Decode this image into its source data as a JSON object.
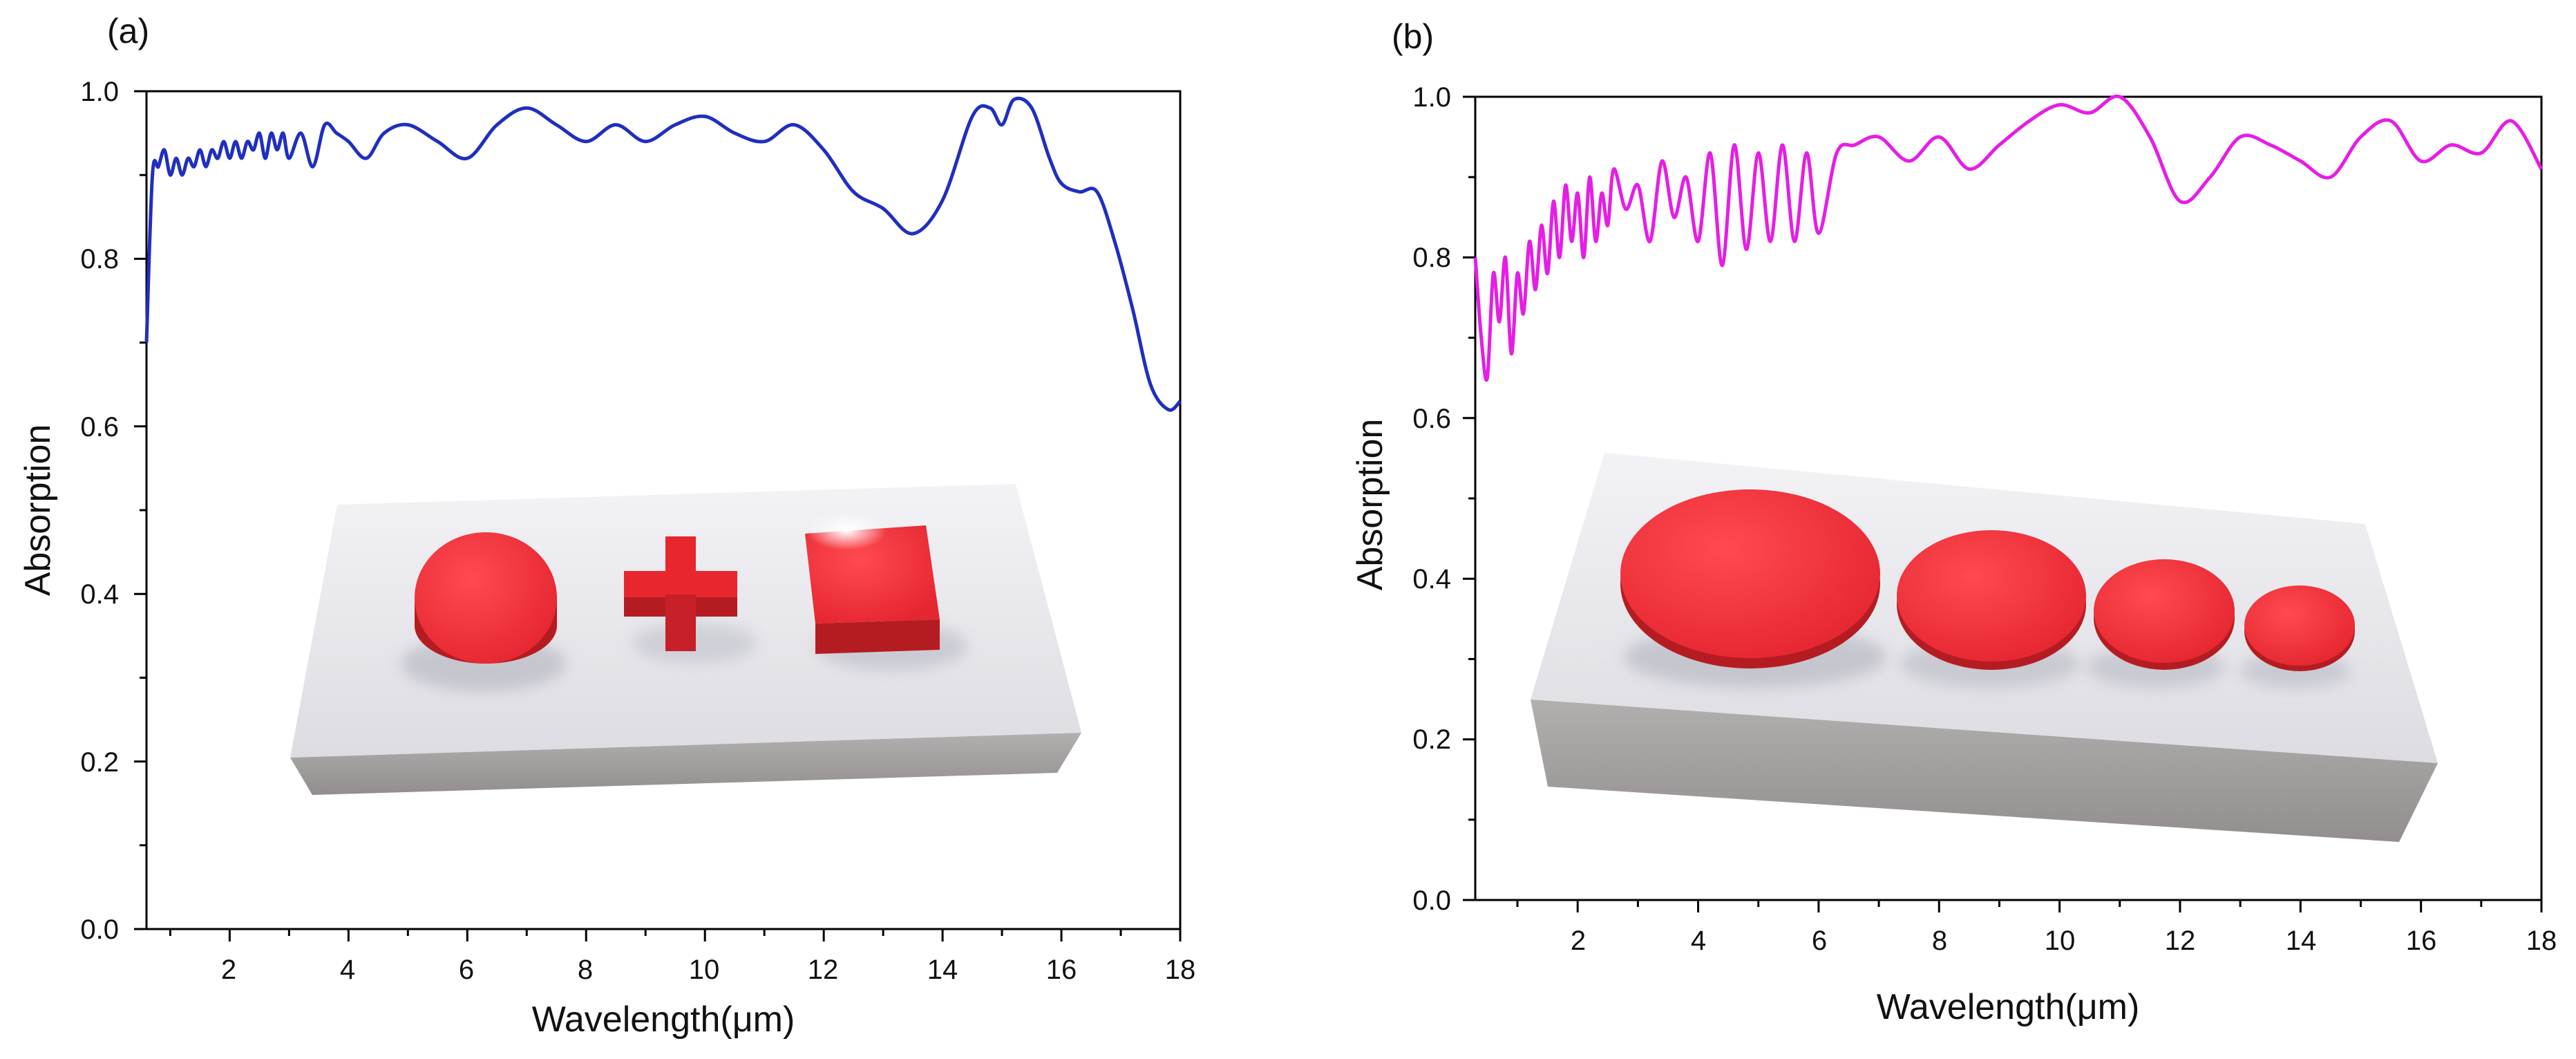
{
  "chart_data": [
    {
      "type": "line",
      "panel_label": "(a)",
      "xlabel": "Wavelength(μm)",
      "ylabel": "Absorption",
      "xlim": [
        0.6,
        18
      ],
      "ylim": [
        0.0,
        1.0
      ],
      "xticks": [
        "2",
        "4",
        "6",
        "8",
        "10",
        "12",
        "14",
        "16",
        "18"
      ],
      "yticks": [
        "0.0",
        "0.2",
        "0.4",
        "0.6",
        "0.8",
        "1.0"
      ],
      "series": [
        {
          "name": "(a)",
          "color": "#1f2fbf",
          "x": [
            0.6,
            0.7,
            0.8,
            0.9,
            1.0,
            1.1,
            1.2,
            1.3,
            1.4,
            1.5,
            1.6,
            1.7,
            1.8,
            1.9,
            2.0,
            2.1,
            2.2,
            2.3,
            2.4,
            2.5,
            2.6,
            2.7,
            2.8,
            2.9,
            3.0,
            3.2,
            3.4,
            3.6,
            3.8,
            4.0,
            4.3,
            4.6,
            5.0,
            5.5,
            6.0,
            6.5,
            7.0,
            7.5,
            8.0,
            8.5,
            9.0,
            9.5,
            10.0,
            10.5,
            11.0,
            11.5,
            12.0,
            12.5,
            13.0,
            13.5,
            14.0,
            14.5,
            14.8,
            15.0,
            15.2,
            15.5,
            15.8,
            16.0,
            16.3,
            16.6,
            16.9,
            17.2,
            17.5,
            17.8,
            18.0
          ],
          "y": [
            0.7,
            0.9,
            0.91,
            0.93,
            0.9,
            0.92,
            0.9,
            0.92,
            0.91,
            0.93,
            0.91,
            0.93,
            0.92,
            0.94,
            0.92,
            0.94,
            0.92,
            0.94,
            0.93,
            0.95,
            0.92,
            0.95,
            0.93,
            0.95,
            0.92,
            0.95,
            0.91,
            0.96,
            0.95,
            0.94,
            0.92,
            0.95,
            0.96,
            0.94,
            0.92,
            0.96,
            0.98,
            0.96,
            0.94,
            0.96,
            0.94,
            0.96,
            0.97,
            0.95,
            0.94,
            0.96,
            0.93,
            0.88,
            0.86,
            0.83,
            0.87,
            0.97,
            0.98,
            0.96,
            0.99,
            0.98,
            0.92,
            0.89,
            0.88,
            0.88,
            0.82,
            0.74,
            0.65,
            0.62,
            0.63
          ]
        }
      ]
    },
    {
      "type": "line",
      "panel_label": "(b)",
      "xlabel": "Wavelength(μm)",
      "ylabel": "Absorption",
      "xlim": [
        0.3,
        18
      ],
      "ylim": [
        0.0,
        1.0
      ],
      "xticks": [
        "2",
        "4",
        "6",
        "8",
        "10",
        "12",
        "14",
        "16",
        "18"
      ],
      "yticks": [
        "0.0",
        "0.2",
        "0.4",
        "0.6",
        "0.8",
        "1.0"
      ],
      "series": [
        {
          "name": "(b)",
          "color": "#e51ee5",
          "x": [
            0.3,
            0.4,
            0.5,
            0.6,
            0.7,
            0.8,
            0.9,
            1.0,
            1.1,
            1.2,
            1.3,
            1.4,
            1.5,
            1.6,
            1.7,
            1.8,
            1.9,
            2.0,
            2.1,
            2.2,
            2.3,
            2.4,
            2.5,
            2.6,
            2.8,
            3.0,
            3.2,
            3.4,
            3.6,
            3.8,
            4.0,
            4.2,
            4.4,
            4.6,
            4.8,
            5.0,
            5.2,
            5.4,
            5.6,
            5.8,
            6.0,
            6.3,
            6.6,
            7.0,
            7.5,
            8.0,
            8.5,
            9.0,
            9.5,
            10.0,
            10.5,
            11.0,
            11.5,
            12.0,
            12.5,
            13.0,
            13.5,
            14.0,
            14.5,
            15.0,
            15.5,
            16.0,
            16.5,
            17.0,
            17.5,
            18.0
          ],
          "y": [
            0.8,
            0.7,
            0.65,
            0.78,
            0.72,
            0.8,
            0.68,
            0.78,
            0.73,
            0.82,
            0.76,
            0.84,
            0.78,
            0.87,
            0.8,
            0.89,
            0.82,
            0.88,
            0.8,
            0.9,
            0.82,
            0.88,
            0.84,
            0.91,
            0.86,
            0.89,
            0.82,
            0.92,
            0.85,
            0.9,
            0.82,
            0.93,
            0.79,
            0.94,
            0.81,
            0.93,
            0.82,
            0.94,
            0.82,
            0.93,
            0.83,
            0.93,
            0.94,
            0.95,
            0.92,
            0.95,
            0.91,
            0.94,
            0.97,
            0.99,
            0.98,
            1.0,
            0.95,
            0.87,
            0.9,
            0.95,
            0.94,
            0.92,
            0.9,
            0.95,
            0.97,
            0.92,
            0.94,
            0.93,
            0.97,
            0.91
          ]
        }
      ]
    }
  ],
  "insets": [
    {
      "shapes": [
        "disk",
        "cross",
        "square"
      ],
      "shape_color": "#e8262e",
      "block_color": "#e9e9ee"
    },
    {
      "shapes": [
        "disk-large",
        "disk-medium",
        "disk-small",
        "disk-smallest"
      ],
      "shape_color": "#e8262e",
      "block_color": "#e9e9ee"
    }
  ]
}
